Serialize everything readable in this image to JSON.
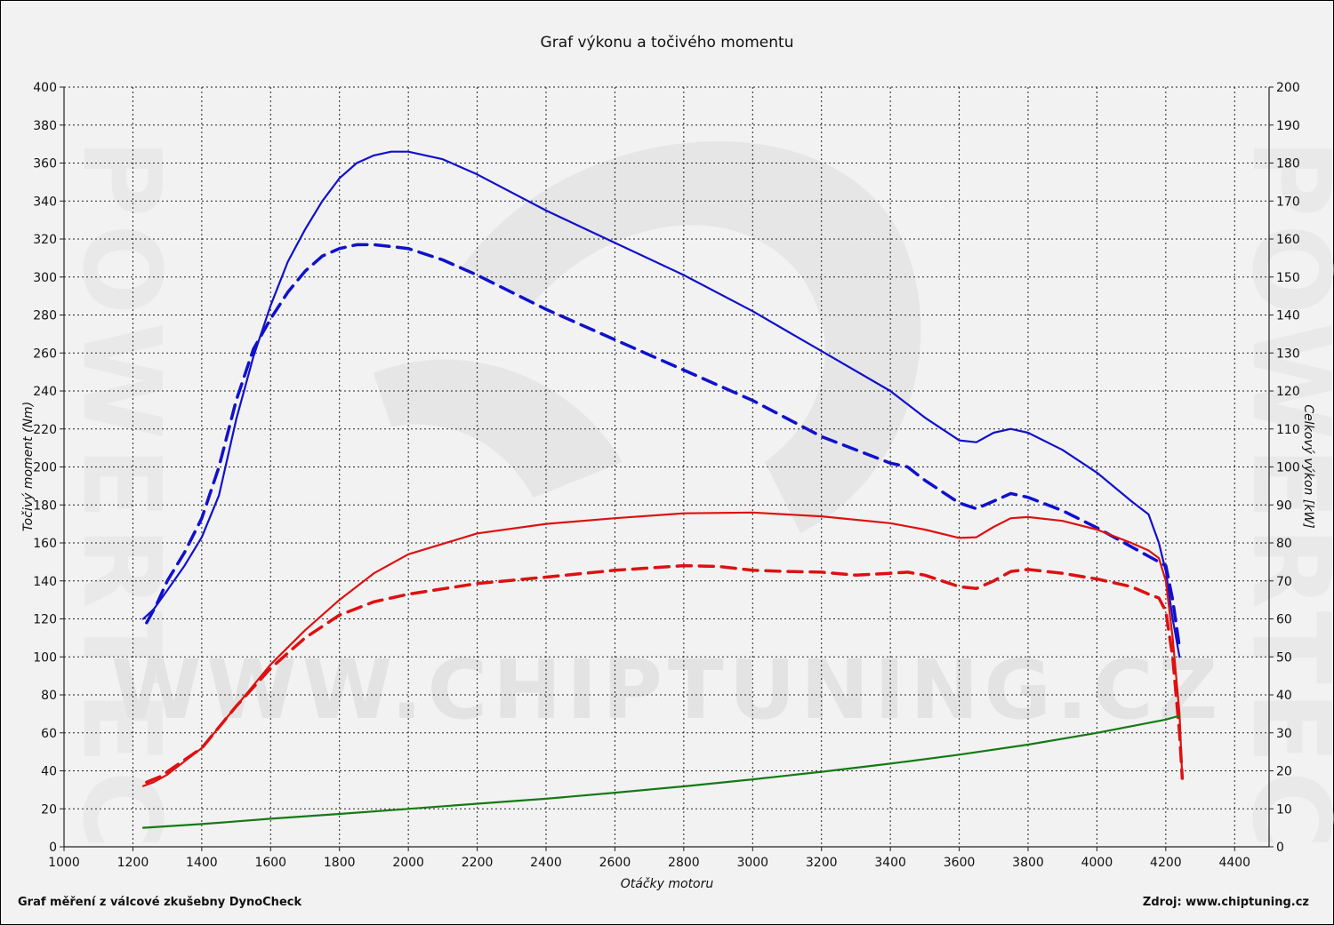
{
  "chart_data": {
    "type": "line",
    "title": "Graf výkonu a točivého momentu",
    "xlabel": "Otáčky motoru",
    "ylabel_left": "Točivý moment (Nm)",
    "ylabel_right": "Celkový výkon [kW]",
    "xlim": [
      1000,
      4500
    ],
    "ylim_left": [
      0,
      400
    ],
    "ylim_right": [
      0,
      200
    ],
    "x_ticks": [
      "1000",
      "1200",
      "1400",
      "1600",
      "1800",
      "2000",
      "2200",
      "2400",
      "2600",
      "2800",
      "3000",
      "3200",
      "3400",
      "3600",
      "3800",
      "4000",
      "4200",
      "4400"
    ],
    "y_left_ticks": [
      "0",
      "20",
      "40",
      "60",
      "80",
      "100",
      "120",
      "140",
      "160",
      "180",
      "200",
      "220",
      "240",
      "260",
      "280",
      "300",
      "320",
      "340",
      "360",
      "380",
      "400"
    ],
    "y_right_ticks": [
      "0",
      "10",
      "20",
      "30",
      "40",
      "50",
      "60",
      "70",
      "80",
      "90",
      "100",
      "110",
      "120",
      "130",
      "140",
      "150",
      "160",
      "170",
      "180",
      "190",
      "200"
    ],
    "grid": true,
    "series": [
      {
        "color": "#1010cc",
        "dash": false,
        "axis": "left",
        "x": [
          1230,
          1260,
          1300,
          1350,
          1400,
          1450,
          1500,
          1550,
          1600,
          1650,
          1700,
          1750,
          1800,
          1850,
          1900,
          1950,
          2000,
          2100,
          2200,
          2400,
          2600,
          2800,
          3000,
          3200,
          3400,
          3500,
          3600,
          3650,
          3700,
          3750,
          3800,
          3900,
          4000,
          4100,
          4150,
          4180,
          4200,
          4220,
          4240
        ],
        "y": [
          120,
          125,
          135,
          148,
          163,
          185,
          225,
          258,
          285,
          308,
          325,
          340,
          352,
          360,
          364,
          366,
          366,
          362,
          354,
          335,
          318,
          301,
          282,
          261,
          240,
          226,
          214,
          213,
          218,
          220,
          218,
          209,
          197,
          182,
          175,
          160,
          145,
          120,
          100
        ]
      },
      {
        "color": "#1010cc",
        "dash": true,
        "axis": "left",
        "x": [
          1240,
          1270,
          1300,
          1350,
          1400,
          1450,
          1500,
          1550,
          1600,
          1650,
          1700,
          1750,
          1800,
          1850,
          1900,
          1950,
          2000,
          2100,
          2200,
          2400,
          2600,
          2800,
          3000,
          3200,
          3400,
          3450,
          3500,
          3600,
          3650,
          3700,
          3750,
          3800,
          3900,
          4000,
          4100,
          4150,
          4200,
          4220,
          4240
        ],
        "y": [
          118,
          128,
          140,
          155,
          173,
          200,
          235,
          262,
          278,
          292,
          303,
          311,
          315,
          317,
          317,
          316,
          315,
          309,
          301,
          283,
          267,
          251,
          235,
          216,
          202,
          200,
          193,
          181,
          178,
          182,
          186,
          184,
          177,
          168,
          158,
          153,
          148,
          130,
          105
        ]
      },
      {
        "color": "#dd1111",
        "dash": false,
        "axis": "right",
        "x": [
          1230,
          1260,
          1300,
          1400,
          1500,
          1600,
          1700,
          1800,
          1900,
          2000,
          2200,
          2400,
          2600,
          2800,
          3000,
          3200,
          3400,
          3500,
          3600,
          3650,
          3700,
          3750,
          3800,
          3900,
          4000,
          4100,
          4150,
          4180,
          4200,
          4220,
          4240,
          4248
        ],
        "y": [
          16,
          17,
          19,
          26,
          37,
          48,
          57,
          65,
          72,
          77,
          82.5,
          85,
          86.5,
          87.8,
          88,
          87,
          85.2,
          83.5,
          81.3,
          81.5,
          84.2,
          86.5,
          86.8,
          85.8,
          83.5,
          80,
          78,
          76,
          70,
          55,
          35,
          18
        ]
      },
      {
        "color": "#dd1111",
        "dash": true,
        "axis": "right",
        "x": [
          1240,
          1280,
          1320,
          1400,
          1500,
          1600,
          1700,
          1800,
          1900,
          2000,
          2200,
          2400,
          2600,
          2800,
          2900,
          3000,
          3100,
          3200,
          3300,
          3400,
          3450,
          3500,
          3600,
          3650,
          3700,
          3750,
          3800,
          3900,
          4000,
          4100,
          4150,
          4180,
          4200,
          4220,
          4240,
          4248
        ],
        "y": [
          17,
          18.5,
          21,
          26,
          37,
          47,
          55,
          61,
          64.5,
          66.5,
          69.3,
          71,
          72.8,
          74,
          73.8,
          72.8,
          72.5,
          72.3,
          71.5,
          72,
          72.3,
          71.5,
          68.5,
          68,
          70,
          72.5,
          73,
          72,
          70.5,
          68.5,
          66.5,
          65.5,
          62,
          50,
          30,
          18
        ]
      },
      {
        "color": "#157a15",
        "dash": false,
        "axis": "left",
        "x": [
          1230,
          1400,
          1600,
          1800,
          2000,
          2200,
          2400,
          2600,
          2800,
          3000,
          3200,
          3400,
          3600,
          3800,
          4000,
          4100,
          4200,
          4240
        ],
        "y": [
          10,
          12,
          14.8,
          17.3,
          20,
          22.7,
          25.3,
          28.5,
          31.8,
          35.5,
          39.5,
          43.8,
          48.5,
          53.8,
          60,
          63.5,
          67,
          69
        ]
      }
    ]
  },
  "watermark": "WWW.CHIPTUNING.CZ",
  "side_watermark": "POWERTEC",
  "footer": {
    "left": "Graf měření z válcové zkušebny DynoCheck",
    "right": "Zdroj: www.chiptuning.cz"
  }
}
